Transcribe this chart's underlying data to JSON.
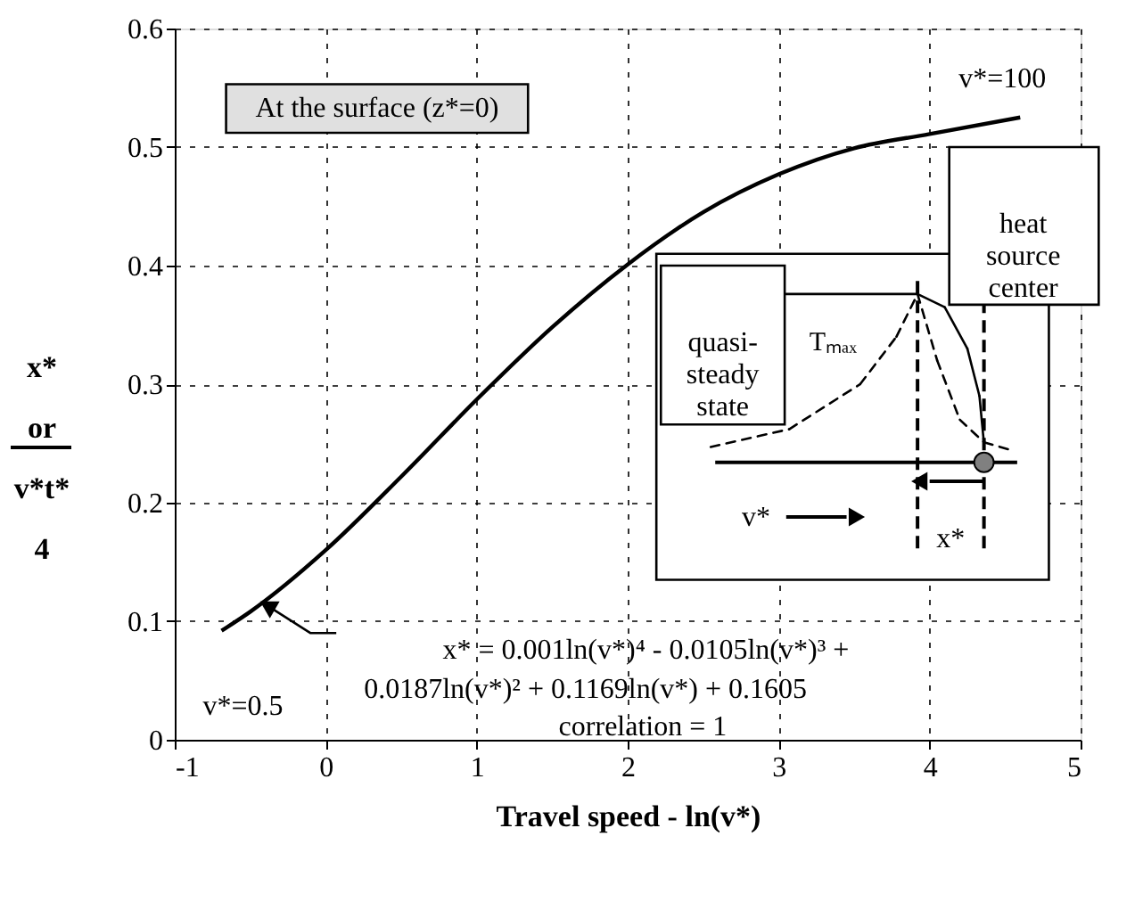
{
  "chart_data": {
    "type": "line",
    "xlabel": "Travel speed - ln(v*)",
    "ylabel": "x*\nor\nv*t*\n4",
    "x": [
      -0.69,
      -0.5,
      0,
      0.5,
      1,
      1.5,
      2,
      2.5,
      3,
      3.5,
      4,
      4.6
    ],
    "series": [
      {
        "color": "#000000",
        "values": [
          0.092,
          0.108,
          0.16,
          0.222,
          0.287,
          0.348,
          0.401,
          0.445,
          0.477,
          0.499,
          0.511,
          0.525
        ]
      }
    ],
    "xlim": [
      -1,
      5
    ],
    "ylim": [
      0,
      0.6
    ],
    "xticks": [
      -1,
      0,
      1,
      2,
      3,
      4,
      5
    ],
    "yticks": [
      0,
      0.1,
      0.2,
      0.3,
      0.4,
      0.5,
      0.6
    ],
    "grid": true,
    "line_style": "solid",
    "marker": "none",
    "annotations": [
      "At the surface (z*=0)",
      {
        "text": "v*=100",
        "x": 4.6,
        "y": 0.525
      },
      {
        "text": "v*=0.5",
        "x": -0.69,
        "y": 0.092
      },
      "x* = 0.001ln(v*)⁴ - 0.0105ln(v*)³ +",
      "0.0187ln(v*)² + 0.1169ln(v*) + 0.1605",
      "correlation = 1",
      "heat\nsource\ncenter",
      "quasi-\nsteady\nstate",
      "Tₘₐₓ",
      "v*",
      "x*"
    ]
  }
}
